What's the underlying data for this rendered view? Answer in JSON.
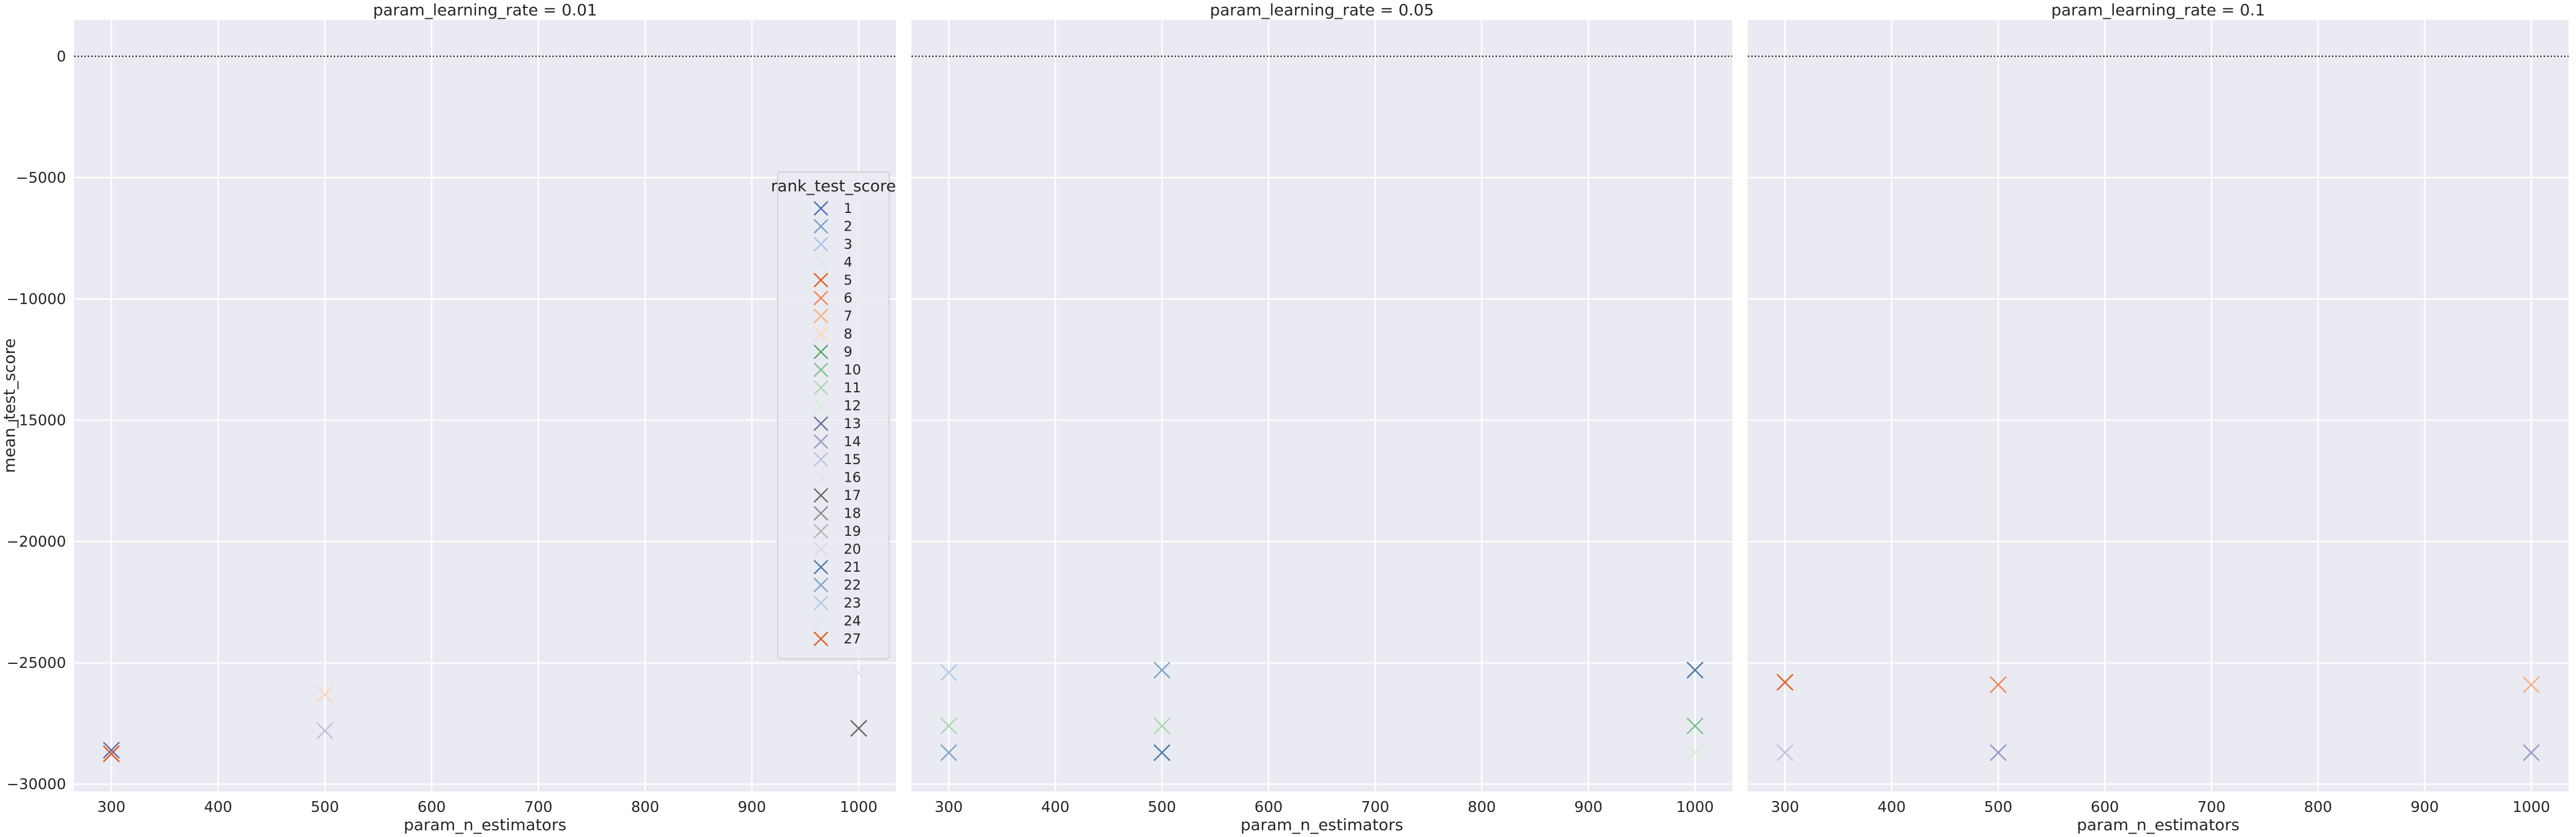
{
  "chart_data": [
    {
      "type": "scatter",
      "title": "param_learning_rate = 0.01",
      "xlabel": "param_n_estimators",
      "ylabel": "mean_test_score",
      "xlim": [
        265,
        1035
      ],
      "ylim": [
        -30300,
        1500
      ],
      "xticks": [
        300,
        400,
        500,
        600,
        700,
        800,
        900,
        1000
      ],
      "yticks": [
        0,
        -5000,
        -10000,
        -15000,
        -20000,
        -25000,
        -30000
      ],
      "grid": true,
      "reference_line": 0,
      "points": [
        {
          "x": 300,
          "y": -28750,
          "rank": "27"
        },
        {
          "x": 300,
          "y": -28600,
          "rank": "13"
        },
        {
          "x": 500,
          "y": -26300,
          "rank": "8"
        },
        {
          "x": 500,
          "y": -27800,
          "rank": "15"
        },
        {
          "x": 1000,
          "y": -25400,
          "rank": "16"
        },
        {
          "x": 1000,
          "y": -27700,
          "rank": "17"
        }
      ]
    },
    {
      "type": "scatter",
      "title": "param_learning_rate = 0.05",
      "xlabel": "param_n_estimators",
      "ylabel": "",
      "xlim": [
        265,
        1035
      ],
      "ylim": [
        -30300,
        1500
      ],
      "xticks": [
        300,
        400,
        500,
        600,
        700,
        800,
        900,
        1000
      ],
      "grid": true,
      "reference_line": 0,
      "points": [
        {
          "x": 300,
          "y": -25400,
          "rank": "23"
        },
        {
          "x": 300,
          "y": -27600,
          "rank": "11"
        },
        {
          "x": 300,
          "y": -28700,
          "rank": "22"
        },
        {
          "x": 500,
          "y": -25300,
          "rank": "22"
        },
        {
          "x": 500,
          "y": -27600,
          "rank": "11"
        },
        {
          "x": 500,
          "y": -28700,
          "rank": "21"
        },
        {
          "x": 1000,
          "y": -25300,
          "rank": "21"
        },
        {
          "x": 1000,
          "y": -27600,
          "rank": "10"
        },
        {
          "x": 1000,
          "y": -28700,
          "rank": "12"
        }
      ]
    },
    {
      "type": "scatter",
      "title": "param_learning_rate = 0.1",
      "xlabel": "param_n_estimators",
      "ylabel": "",
      "xlim": [
        265,
        1035
      ],
      "ylim": [
        -30300,
        1500
      ],
      "xticks": [
        300,
        400,
        500,
        600,
        700,
        800,
        900,
        1000
      ],
      "grid": true,
      "reference_line": 0,
      "points": [
        {
          "x": 300,
          "y": -25800,
          "rank": "5"
        },
        {
          "x": 300,
          "y": -28700,
          "rank": "15"
        },
        {
          "x": 500,
          "y": -25900,
          "rank": "6"
        },
        {
          "x": 500,
          "y": -28700,
          "rank": "14"
        },
        {
          "x": 1000,
          "y": -25900,
          "rank": "7"
        },
        {
          "x": 1000,
          "y": -28700,
          "rank": "14"
        }
      ]
    }
  ],
  "legend": {
    "title": "rank_test_score",
    "placement": "right",
    "entries": [
      {
        "label": "1",
        "color": "#4c72b0"
      },
      {
        "label": "2",
        "color": "#7c9fd0"
      },
      {
        "label": "3",
        "color": "#a9c4e8"
      },
      {
        "label": "4",
        "color": "#dbe7f6"
      },
      {
        "label": "5",
        "color": "#dd5f25"
      },
      {
        "label": "6",
        "color": "#ef8552"
      },
      {
        "label": "7",
        "color": "#f8ae7d"
      },
      {
        "label": "8",
        "color": "#fbd7b6"
      },
      {
        "label": "9",
        "color": "#55a868"
      },
      {
        "label": "10",
        "color": "#7fc48c"
      },
      {
        "label": "11",
        "color": "#a9dab0"
      },
      {
        "label": "12",
        "color": "#d6eed8"
      },
      {
        "label": "13",
        "color": "#6e6ea3"
      },
      {
        "label": "14",
        "color": "#9a9ac4"
      },
      {
        "label": "15",
        "color": "#c1c1dc"
      },
      {
        "label": "16",
        "color": "#e3e3ef"
      },
      {
        "label": "17",
        "color": "#6a6a6a"
      },
      {
        "label": "18",
        "color": "#8e8e8e"
      },
      {
        "label": "19",
        "color": "#b6b6b6"
      },
      {
        "label": "20",
        "color": "#dcdcdc"
      },
      {
        "label": "21",
        "color": "#4f7ca8"
      },
      {
        "label": "22",
        "color": "#7ea6cc"
      },
      {
        "label": "23",
        "color": "#aecbe5"
      },
      {
        "label": "24",
        "color": "#dae8f5"
      },
      {
        "label": "27",
        "color": "#dd5f25"
      }
    ]
  }
}
